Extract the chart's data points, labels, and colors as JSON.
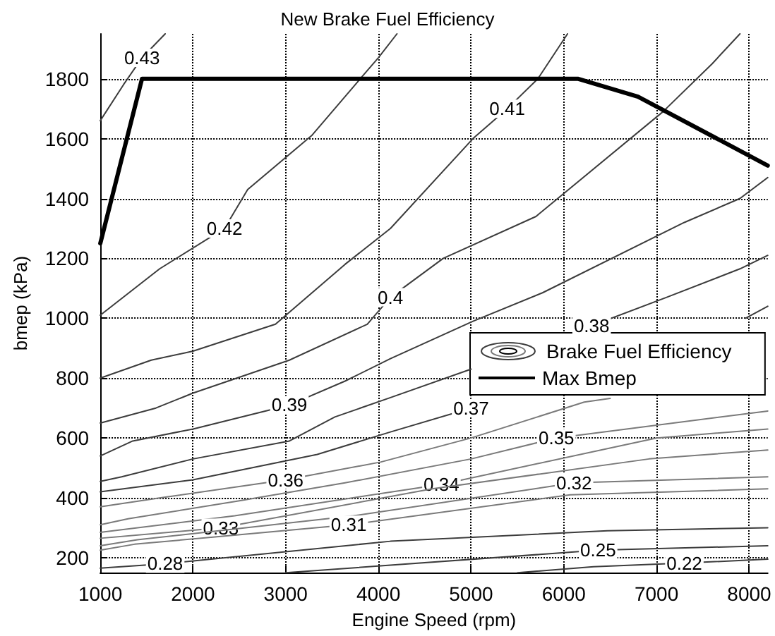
{
  "chart_data": {
    "type": "line",
    "title": "New Brake Fuel Efficiency",
    "xlabel": "Engine Speed (rpm)",
    "ylabel": "bmep (kPa)",
    "legend_title": "Brake Fuel Efficiency",
    "xlim": [
      1000,
      8200
    ],
    "xticks": [
      1000,
      2000,
      3000,
      4000,
      5000,
      6000,
      7000,
      8000
    ],
    "ylim": [
      150,
      1950
    ],
    "yticks": [
      200,
      400,
      600,
      800,
      1000,
      1200,
      1400,
      1600,
      1800
    ],
    "grid": true,
    "legend": "right",
    "marker": "none",
    "line_style": "solid",
    "series": [
      {
        "name": "0.43",
        "color": "#3c3c3c",
        "x": [
          1000,
          1250,
          1450,
          1700
        ],
        "values": [
          1660,
          1780,
          1870,
          1950
        ]
      },
      {
        "name": "0.42",
        "color": "#3c3c3c",
        "x": [
          1000,
          1640,
          2340,
          2590,
          3280,
          3860,
          4000,
          4200
        ],
        "values": [
          1010,
          1165,
          1300,
          1430,
          1610,
          1820,
          1870,
          1950
        ]
      },
      {
        "name": "0.41",
        "color": "#3c3c3c",
        "x": [
          1000,
          1550,
          2000,
          2890,
          3640,
          4130,
          5020,
          5390,
          5720,
          6040
        ],
        "values": [
          800,
          860,
          890,
          980,
          1180,
          1300,
          1600,
          1700,
          1800,
          1950
        ]
      },
      {
        "name": "0.4",
        "color": "#3c3c3c",
        "x": [
          1000,
          1600,
          2000,
          3040,
          3880,
          4130,
          4700,
          5700,
          7070,
          7600,
          7900
        ],
        "values": [
          650,
          700,
          750,
          860,
          980,
          1070,
          1200,
          1340,
          1690,
          1850,
          1950
        ]
      },
      {
        "name": "0.39",
        "color": "#3c3c3c",
        "x": [
          1000,
          1350,
          2000,
          3040,
          3640,
          4130,
          5020,
          5770,
          7300,
          7900,
          8200
        ],
        "values": [
          540,
          590,
          630,
          710,
          790,
          865,
          990,
          1085,
          1320,
          1400,
          1470
        ]
      },
      {
        "name": "0.38",
        "color": "#3c3c3c",
        "x": [
          1000,
          1230,
          2000,
          3040,
          3530,
          4130,
          5000,
          null,
          6300,
          7110,
          7900,
          8200
        ],
        "values": [
          455,
          470,
          530,
          590,
          670,
          735,
          830,
          null,
          975,
          1070,
          1165,
          1210
        ]
      },
      {
        "name": "0.37",
        "color": "#3c3c3c",
        "x": [
          1000,
          2000,
          3340,
          4130,
          5000,
          null,
          7960,
          8200
        ],
        "values": [
          420,
          460,
          545,
          620,
          700,
          null,
          1000,
          1040
        ]
      },
      {
        "name": "0.36",
        "color": "#7a7a7a",
        "x": [
          1000,
          1650,
          3000,
          4030,
          5000,
          6220,
          6500
        ],
        "values": [
          370,
          400,
          460,
          520,
          600,
          720,
          732
        ]
      },
      {
        "name": "0.35",
        "color": "#7a7a7a",
        "x": [
          1000,
          1300,
          2500,
          3640,
          5000,
          5920,
          8200
        ],
        "values": [
          310,
          330,
          390,
          450,
          530,
          600,
          690
        ]
      },
      {
        "name": "0.34",
        "color": "#7a7a7a",
        "x": [
          1000,
          2450,
          4680,
          7000,
          8200
        ],
        "values": [
          285,
          340,
          445,
          600,
          630
        ]
      },
      {
        "name": "0.33",
        "color": "#7a7a7a",
        "x": [
          1000,
          2300,
          4580,
          6920,
          8200
        ],
        "values": [
          265,
          300,
          430,
          530,
          560
        ]
      },
      {
        "name": "0.32",
        "color": "#7a7a7a",
        "x": [
          1000,
          1400,
          3730,
          6110,
          8200
        ],
        "values": [
          240,
          260,
          340,
          450,
          470
        ]
      },
      {
        "name": "0.31",
        "color": "#7a7a7a",
        "x": [
          1000,
          1370,
          3680,
          6070,
          8200
        ],
        "values": [
          225,
          245,
          310,
          410,
          430
        ]
      },
      {
        "name": "0.28",
        "color": "#3c3c3c",
        "x": [
          1000,
          1700,
          4130,
          6470,
          8200
        ],
        "values": [
          165,
          180,
          255,
          290,
          300
        ]
      },
      {
        "name": "0.25",
        "color": "#3c3c3c",
        "x": [
          3000,
          4130,
          6370,
          8200
        ],
        "values": [
          150,
          175,
          225,
          240
        ]
      },
      {
        "name": "0.22",
        "color": "#3c3c3c",
        "x": [
          5500,
          6320,
          7300,
          8200
        ],
        "values": [
          150,
          170,
          182,
          195
        ]
      },
      {
        "name": "Max Bmep",
        "color": "#000000",
        "x": [
          1000,
          1450,
          6150,
          6800,
          8200
        ],
        "values": [
          1250,
          1800,
          1800,
          1740,
          1510
        ]
      }
    ]
  }
}
